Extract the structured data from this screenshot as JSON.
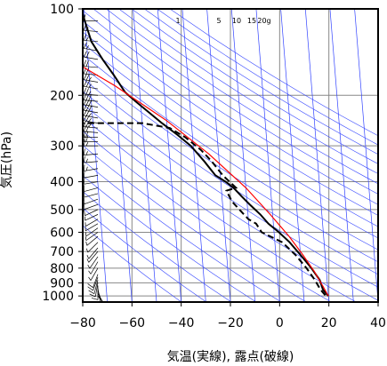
{
  "chart_data": {
    "type": "line",
    "title": "",
    "xlabel": "気温(実線), 露点(破線)",
    "ylabel": "気圧(hPa)",
    "x_axis": {
      "min": -80,
      "max": 40,
      "ticks": [
        -80,
        -60,
        -40,
        -20,
        0,
        20,
        40
      ],
      "tick_labels": [
        "−80",
        "−60",
        "−40",
        "−20",
        "0",
        "20",
        "40"
      ]
    },
    "y_axis": {
      "scale": "log",
      "min": 100,
      "max": 1050,
      "ticks": [
        100,
        200,
        300,
        400,
        500,
        600,
        700,
        800,
        900,
        1000
      ],
      "tick_labels": [
        "100",
        "200",
        "300",
        "400",
        "500",
        "600",
        "700",
        "800",
        "900",
        "1000"
      ]
    },
    "grid": true,
    "mixing_ratio_labels": [
      "1",
      "5",
      "10",
      "15",
      "20g"
    ],
    "colors": {
      "temperature": "#000000",
      "dewpoint": "#000000",
      "parcel": "#ff0000",
      "isotherm": "#3344ff",
      "adiabat": "#3344ff",
      "grid": "#888888"
    },
    "series": [
      {
        "style": "solid",
        "points": [
          [
            -71,
            100
          ],
          [
            -70,
            110
          ],
          [
            -68,
            130
          ],
          [
            -64,
            150
          ],
          [
            -60,
            170
          ],
          [
            -56,
            195
          ],
          [
            -52,
            210
          ],
          [
            -42,
            250
          ],
          [
            -36,
            275
          ],
          [
            -31,
            300
          ],
          [
            -26,
            340
          ],
          [
            -22,
            380
          ],
          [
            -18,
            400
          ],
          [
            -15,
            420
          ],
          [
            -12,
            450
          ],
          [
            -9,
            480
          ],
          [
            -5,
            520
          ],
          [
            -2,
            560
          ],
          [
            2,
            600
          ],
          [
            6,
            650
          ],
          [
            10,
            720
          ],
          [
            14,
            800
          ],
          [
            17,
            880
          ],
          [
            18,
            950
          ],
          [
            20,
            1000
          ]
        ]
      },
      {
        "style": "dashed",
        "points": [
          [
            -80,
            250
          ],
          [
            -50,
            250
          ],
          [
            -39,
            260
          ],
          [
            -33,
            280
          ],
          [
            -27,
            310
          ],
          [
            -23,
            340
          ],
          [
            -19,
            380
          ],
          [
            -14,
            420
          ],
          [
            -18,
            430
          ],
          [
            -16,
            470
          ],
          [
            -10,
            540
          ],
          [
            -7,
            560
          ],
          [
            -5,
            600
          ],
          [
            3,
            650
          ],
          [
            8,
            720
          ],
          [
            12,
            800
          ],
          [
            15,
            880
          ],
          [
            17,
            950
          ],
          [
            19,
            1000
          ]
        ]
      },
      {
        "style": "red",
        "points": [
          [
            -80,
            145
          ],
          [
            -60,
            185
          ],
          [
            -40,
            245
          ],
          [
            -24,
            320
          ],
          [
            -10,
            420
          ],
          [
            -1,
            520
          ],
          [
            6,
            620
          ],
          [
            11,
            720
          ],
          [
            15,
            820
          ],
          [
            18,
            920
          ],
          [
            20,
            1000
          ]
        ]
      }
    ],
    "wind_barbs": [
      [
        100,
        270,
        10
      ],
      [
        110,
        270,
        10
      ],
      [
        120,
        275,
        15
      ],
      [
        130,
        275,
        15
      ],
      [
        140,
        280,
        15
      ],
      [
        150,
        280,
        20
      ],
      [
        160,
        275,
        20
      ],
      [
        170,
        275,
        20
      ],
      [
        180,
        280,
        25
      ],
      [
        190,
        280,
        25
      ],
      [
        200,
        275,
        25
      ],
      [
        210,
        275,
        30
      ],
      [
        220,
        280,
        30
      ],
      [
        230,
        280,
        30
      ],
      [
        240,
        280,
        25
      ],
      [
        250,
        280,
        25
      ],
      [
        260,
        275,
        25
      ],
      [
        270,
        275,
        20
      ],
      [
        280,
        270,
        20
      ],
      [
        290,
        270,
        20
      ],
      [
        300,
        270,
        15
      ],
      [
        320,
        265,
        15
      ],
      [
        340,
        265,
        15
      ],
      [
        360,
        260,
        15
      ],
      [
        380,
        260,
        10
      ],
      [
        400,
        260,
        10
      ],
      [
        420,
        255,
        10
      ],
      [
        440,
        255,
        10
      ],
      [
        460,
        250,
        10
      ],
      [
        480,
        250,
        10
      ],
      [
        500,
        245,
        10
      ],
      [
        520,
        245,
        5
      ],
      [
        540,
        240,
        5
      ],
      [
        560,
        240,
        5
      ],
      [
        580,
        235,
        5
      ],
      [
        600,
        235,
        5
      ],
      [
        620,
        230,
        5
      ],
      [
        650,
        225,
        5
      ],
      [
        680,
        220,
        5
      ],
      [
        700,
        220,
        5
      ],
      [
        730,
        215,
        5
      ],
      [
        760,
        210,
        5
      ],
      [
        800,
        210,
        5
      ],
      [
        840,
        200,
        10
      ],
      [
        860,
        200,
        10
      ],
      [
        880,
        195,
        10
      ],
      [
        900,
        190,
        10
      ],
      [
        920,
        180,
        10
      ],
      [
        940,
        170,
        10
      ],
      [
        960,
        160,
        5
      ],
      [
        980,
        150,
        5
      ],
      [
        1000,
        140,
        5
      ]
    ]
  }
}
